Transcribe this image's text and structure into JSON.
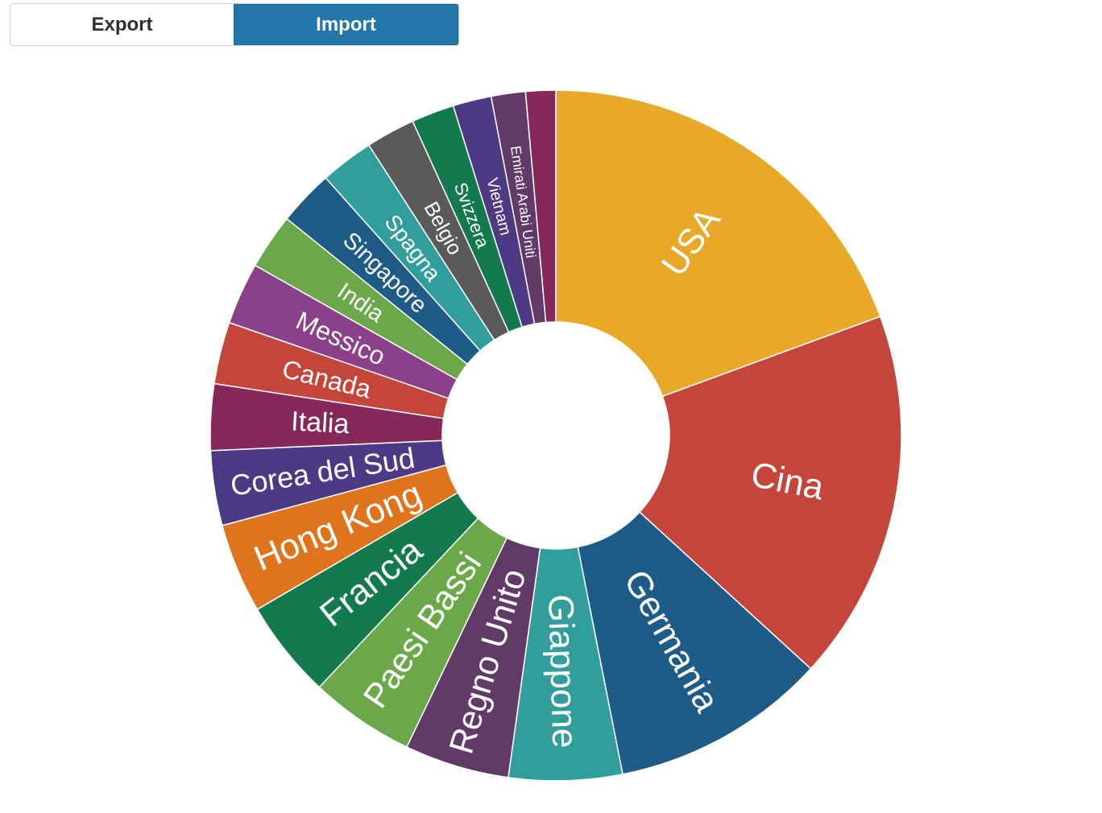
{
  "toggle": {
    "export_label": "Export",
    "import_label": "Import",
    "active": "import"
  },
  "chart_data": {
    "type": "pie",
    "donut": true,
    "start": "top, clockwise",
    "categories": [
      "USA",
      "Cina",
      "Germania",
      "Giappone",
      "Regno Unito",
      "Paesi Bassi",
      "Francia",
      "Hong Kong",
      "Corea del Sud",
      "Italia",
      "Canada",
      "Messico",
      "India",
      "Singapore",
      "Spagna",
      "Belgio",
      "Svizzera",
      "Vietnam",
      "Emirati Arabi Uniti",
      ""
    ],
    "values": [
      19.4,
      17.4,
      10.1,
      5.3,
      4.9,
      4.9,
      4.6,
      4.2,
      3.5,
      3.1,
      2.9,
      2.9,
      2.6,
      2.6,
      2.5,
      2.3,
      2.0,
      1.8,
      1.6,
      1.4
    ],
    "colors": [
      "#e8a828",
      "#c4463a",
      "#1f5b87",
      "#329e9b",
      "#613a68",
      "#6aa84a",
      "#127a4d",
      "#df741c",
      "#4d3a84",
      "#86295a",
      "#c4463a",
      "#8b4189",
      "#6aa84a",
      "#1f5b87",
      "#329e9b",
      "#5a5a5a",
      "#127a4d",
      "#4d3a84",
      "#613a68",
      "#86295a"
    ]
  }
}
